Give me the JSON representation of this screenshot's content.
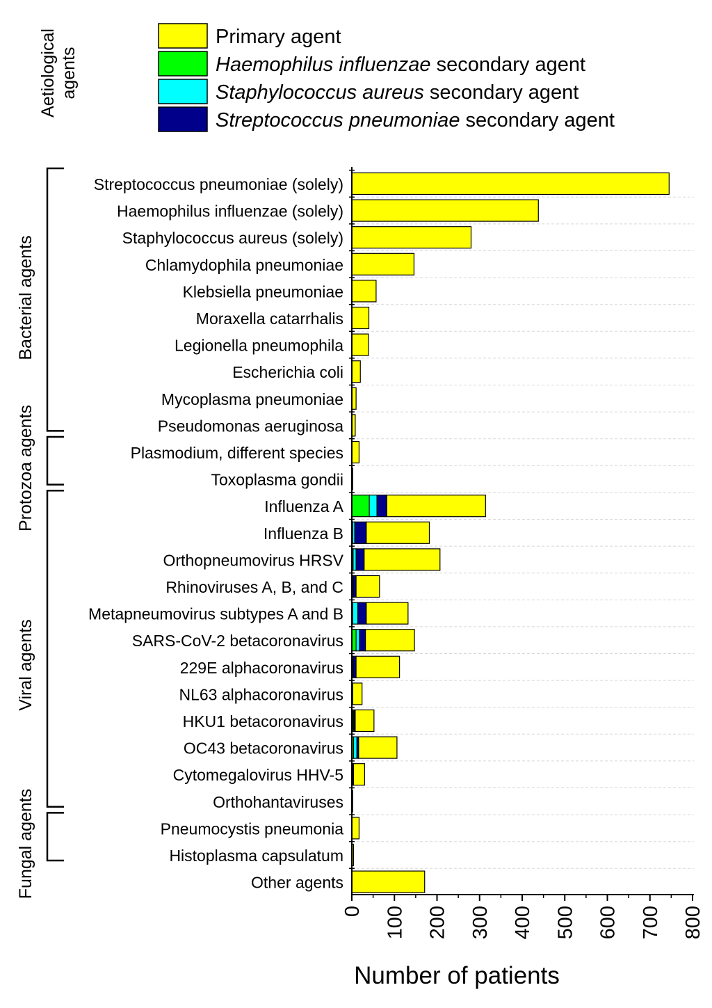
{
  "chart_data": {
    "type": "bar",
    "orientation": "horizontal",
    "stacked": true,
    "title": "",
    "xlabel": "Number of patients",
    "ylabel": "",
    "xlim": [
      0,
      800
    ],
    "x_ticks": [
      0,
      100,
      200,
      300,
      400,
      500,
      600,
      700,
      800
    ],
    "grid": "dashed horizontal",
    "legend": {
      "title": "Aetiological agents",
      "position": "top",
      "entries": [
        {
          "key": "primary",
          "italic": "",
          "text": "Primary agent",
          "color": "#FFFF00"
        },
        {
          "key": "hinf",
          "italic": "Haemophilus influenzae",
          "text": " secondary agent",
          "color": "#00FF00"
        },
        {
          "key": "saur",
          "italic": "Staphylococcus aureus",
          "text": " secondary agent",
          "color": "#00FFFF"
        },
        {
          "key": "spneu",
          "italic": "Streptococcus pneumoniae",
          "text": " secondary agent",
          "color": "#00008B"
        }
      ]
    },
    "series_order": [
      "hinf",
      "saur",
      "spneu",
      "primary"
    ],
    "categories": [
      {
        "label": "Streptococcus pneumoniae (solely)",
        "hinf": 0,
        "saur": 0,
        "spneu": 0,
        "primary": 745
      },
      {
        "label": "Haemophilus influenzae (solely)",
        "hinf": 0,
        "saur": 0,
        "spneu": 0,
        "primary": 438
      },
      {
        "label": "Staphylococcus aureus (solely)",
        "hinf": 0,
        "saur": 0,
        "spneu": 0,
        "primary": 280
      },
      {
        "label": "Chlamydophila pneumoniae",
        "hinf": 0,
        "saur": 0,
        "spneu": 0,
        "primary": 146
      },
      {
        "label": "Klebsiella pneumoniae",
        "hinf": 0,
        "saur": 0,
        "spneu": 0,
        "primary": 57
      },
      {
        "label": "Moraxella catarrhalis",
        "hinf": 0,
        "saur": 0,
        "spneu": 0,
        "primary": 40
      },
      {
        "label": "Legionella pneumophila",
        "hinf": 0,
        "saur": 0,
        "spneu": 0,
        "primary": 39
      },
      {
        "label": "Escherichia coli",
        "hinf": 0,
        "saur": 0,
        "spneu": 0,
        "primary": 20
      },
      {
        "label": "Mycoplasma pneumoniae",
        "hinf": 0,
        "saur": 0,
        "spneu": 0,
        "primary": 10
      },
      {
        "label": "Pseudomonas aeruginosa",
        "hinf": 0,
        "saur": 0,
        "spneu": 0,
        "primary": 8
      },
      {
        "label": "Plasmodium, different species",
        "hinf": 0,
        "saur": 0,
        "spneu": 0,
        "primary": 17
      },
      {
        "label": "Toxoplasma gondii",
        "hinf": 0,
        "saur": 0,
        "spneu": 0,
        "primary": 2
      },
      {
        "label": "Influenza A",
        "hinf": 41,
        "saur": 18,
        "spneu": 23,
        "primary": 232
      },
      {
        "label": "Influenza B",
        "hinf": 2,
        "saur": 5,
        "spneu": 27,
        "primary": 148
      },
      {
        "label": "Orthopneumovirus HRSV",
        "hinf": 3,
        "saur": 7,
        "spneu": 19,
        "primary": 178
      },
      {
        "label": "Rhinoviruses A, B, and C",
        "hinf": 1,
        "saur": 2,
        "spneu": 7,
        "primary": 55
      },
      {
        "label": "Metapneumovirus subtypes A and B",
        "hinf": 2,
        "saur": 12,
        "spneu": 20,
        "primary": 98
      },
      {
        "label": "SARS-CoV-2 betacoronavirus",
        "hinf": 10,
        "saur": 8,
        "spneu": 14,
        "primary": 115
      },
      {
        "label": "229E alphacoronavirus",
        "hinf": 1,
        "saur": 2,
        "spneu": 7,
        "primary": 102
      },
      {
        "label": "NL63 alphacoronavirus",
        "hinf": 1,
        "saur": 1,
        "spneu": 0,
        "primary": 22
      },
      {
        "label": "HKU1 betacoronavirus",
        "hinf": 3,
        "saur": 2,
        "spneu": 3,
        "primary": 44
      },
      {
        "label": "OC43 betacoronavirus",
        "hinf": 4,
        "saur": 8,
        "spneu": 4,
        "primary": 90
      },
      {
        "label": "Cytomegalovirus HHV-5",
        "hinf": 1,
        "saur": 1,
        "spneu": 2,
        "primary": 26
      },
      {
        "label": "Orthohantaviruses",
        "hinf": 0,
        "saur": 0,
        "spneu": 0,
        "primary": 2
      },
      {
        "label": "Pneumocystis pneumonia",
        "hinf": 0,
        "saur": 0,
        "spneu": 0,
        "primary": 17
      },
      {
        "label": "Histoplasma capsulatum",
        "hinf": 1,
        "saur": 0,
        "spneu": 0,
        "primary": 3
      },
      {
        "label": "Other agents",
        "hinf": 0,
        "saur": 0,
        "spneu": 0,
        "primary": 171
      }
    ],
    "groups": [
      {
        "label": "Bacterial agents",
        "from": 0,
        "to": 9
      },
      {
        "label": "Protozoa agents",
        "from": 10,
        "to": 11
      },
      {
        "label": "Viral agents",
        "from": 12,
        "to": 23
      },
      {
        "label": "Fungal agents",
        "from": 24,
        "to": 25
      }
    ]
  }
}
